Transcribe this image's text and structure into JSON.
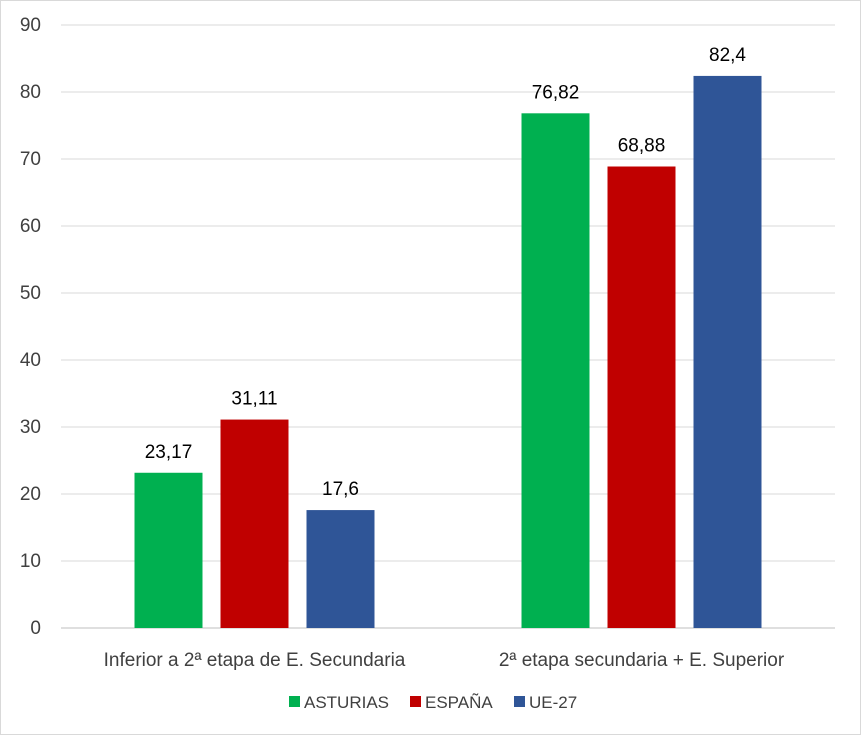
{
  "chart_data": {
    "type": "bar",
    "title": "",
    "xlabel": "",
    "ylabel": "",
    "categories": [
      "Inferior a 2ª etapa de E. Secundaria",
      "2ª etapa secundaria + E. Superior"
    ],
    "series": [
      {
        "name": "ASTURIAS",
        "color": "#00b050",
        "values": [
          23.17,
          76.82
        ],
        "labels": [
          "23,17",
          "76,82"
        ]
      },
      {
        "name": "ESPAÑA",
        "color": "#c00000",
        "values": [
          31.11,
          68.88
        ],
        "labels": [
          "31,11",
          "68,88"
        ]
      },
      {
        "name": "UE-27",
        "color": "#2f5597",
        "values": [
          17.6,
          82.4
        ],
        "labels": [
          "17,6",
          "82,4"
        ]
      }
    ],
    "ylim": [
      0,
      90
    ],
    "yticks": [
      "0",
      "10",
      "20",
      "30",
      "40",
      "50",
      "60",
      "70",
      "80",
      "90"
    ],
    "grid": true,
    "legend_position": "bottom"
  }
}
